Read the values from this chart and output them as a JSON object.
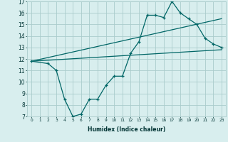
{
  "bg_color": "#d8eeee",
  "grid_color": "#aacccc",
  "line_color": "#006666",
  "xlabel": "Humidex (Indice chaleur)",
  "xlim": [
    -0.5,
    23.5
  ],
  "ylim": [
    7,
    17
  ],
  "yticks": [
    7,
    8,
    9,
    10,
    11,
    12,
    13,
    14,
    15,
    16,
    17
  ],
  "xticks": [
    0,
    1,
    2,
    3,
    4,
    5,
    6,
    7,
    8,
    9,
    10,
    11,
    12,
    13,
    14,
    15,
    16,
    17,
    18,
    19,
    20,
    21,
    22,
    23
  ],
  "line1_x": [
    0,
    2,
    3,
    4,
    5,
    6,
    7,
    8,
    9,
    10,
    11,
    12,
    13,
    14,
    15,
    16,
    17,
    18,
    19,
    20,
    21,
    22,
    23
  ],
  "line1_y": [
    11.8,
    11.6,
    11.0,
    8.5,
    7.0,
    7.2,
    8.5,
    8.5,
    9.7,
    10.5,
    10.5,
    12.5,
    13.5,
    15.8,
    15.8,
    15.6,
    17.0,
    16.0,
    15.5,
    15.0,
    13.8,
    13.3,
    13.0
  ],
  "line2_x": [
    0,
    23
  ],
  "line2_y": [
    11.8,
    15.5
  ],
  "line3_x": [
    0,
    23
  ],
  "line3_y": [
    11.8,
    12.8
  ]
}
